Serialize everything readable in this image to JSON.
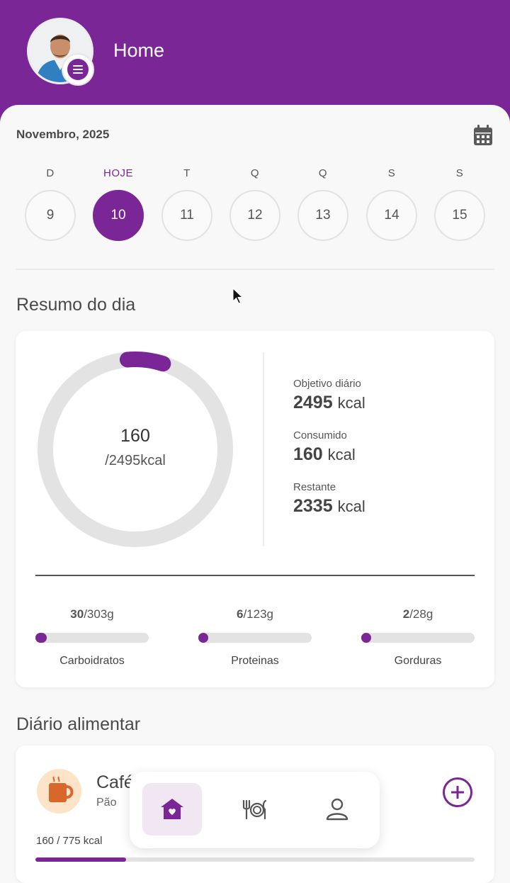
{
  "header": {
    "title": "Home"
  },
  "calendar": {
    "month": "Novembro, 2025",
    "days": [
      {
        "label": "D",
        "num": "9",
        "active": false
      },
      {
        "label": "HOJE",
        "num": "10",
        "active": true
      },
      {
        "label": "T",
        "num": "11",
        "active": false
      },
      {
        "label": "Q",
        "num": "12",
        "active": false
      },
      {
        "label": "Q",
        "num": "13",
        "active": false
      },
      {
        "label": "S",
        "num": "14",
        "active": false
      },
      {
        "label": "S",
        "num": "15",
        "active": false
      }
    ]
  },
  "summary": {
    "title": "Resumo do dia",
    "ring_value": "160",
    "ring_total": "/2495kcal",
    "ring_progress": 0.064,
    "goal_label": "Objetivo diário",
    "goal_value": "2495",
    "consumed_label": "Consumido",
    "consumed_value": "160",
    "remaining_label": "Restante",
    "remaining_value": "2335",
    "unit": "kcal",
    "macros": [
      {
        "name": "Carboidratos",
        "value": "30",
        "target": "/303g",
        "progress": 0.099
      },
      {
        "name": "Proteinas",
        "value": "6",
        "target": "/123g",
        "progress": 0.049
      },
      {
        "name": "Gorduras",
        "value": "2",
        "target": "/28g",
        "progress": 0.071
      }
    ]
  },
  "diary": {
    "title": "Diário alimentar",
    "meal_name": "Café",
    "meal_sub": "Pão",
    "meal_kcal": "160 / 775 kcal",
    "meal_progress": 0.206
  },
  "colors": {
    "accent": "#7b2696",
    "background": "#f7f8f7"
  },
  "icons": [
    "menu-icon",
    "calendar-icon",
    "home-icon",
    "food-icon",
    "profile-icon",
    "add-icon",
    "mug-icon"
  ]
}
